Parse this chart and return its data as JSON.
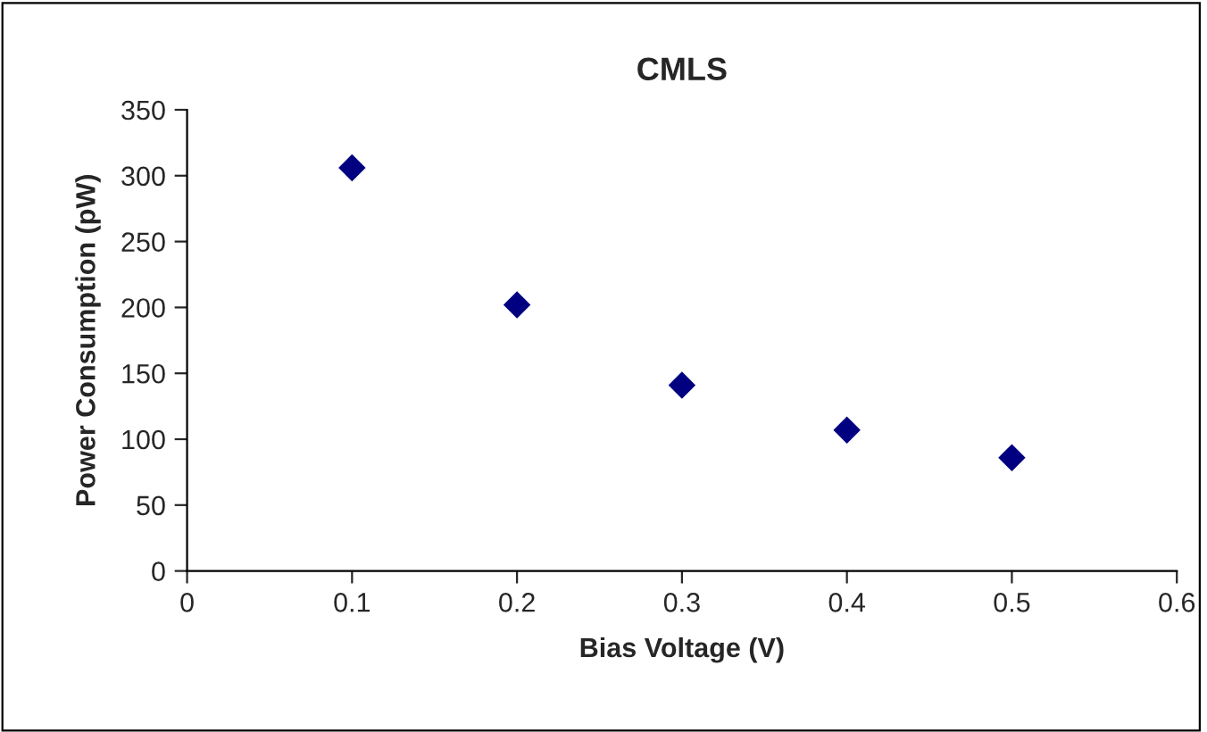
{
  "chart_data": {
    "type": "scatter",
    "title": "CMLS",
    "xlabel": "Bias Voltage (V)",
    "ylabel": "Power Consumption (pW)",
    "x": [
      0.1,
      0.2,
      0.3,
      0.4,
      0.5
    ],
    "series": [
      {
        "color": "#000080",
        "values": [
          306,
          202,
          141,
          107,
          86
        ]
      }
    ],
    "xlim": [
      0,
      0.6
    ],
    "xticks": [
      0,
      0.1,
      0.2,
      0.3,
      0.4,
      0.5,
      0.6
    ],
    "ylim": [
      0,
      350
    ],
    "yticks": [
      0,
      50,
      100,
      150,
      200,
      250,
      300,
      350
    ],
    "marker": "diamond",
    "grid": false,
    "legend": false
  }
}
